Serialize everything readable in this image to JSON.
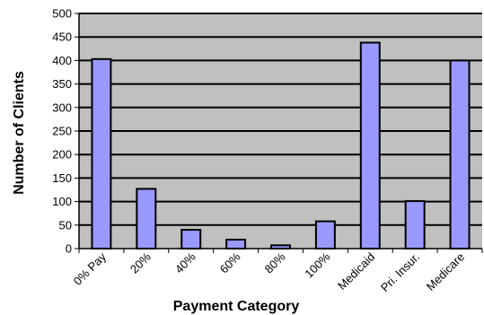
{
  "chart_data": {
    "type": "bar",
    "categories": [
      "0% Pay",
      "20%",
      "40%",
      "60%",
      "80%",
      "100%",
      "Medicaid",
      "Pri. Insur.",
      "Medicare"
    ],
    "values": [
      403,
      127,
      40,
      19,
      7,
      58,
      438,
      101,
      400
    ],
    "xlabel": "Payment Category",
    "ylabel": "Number of Clients",
    "ylim": [
      0,
      500
    ],
    "yticks": [
      0,
      50,
      100,
      150,
      200,
      250,
      300,
      350,
      400,
      450,
      500
    ],
    "grid": true,
    "colors": {
      "bar_fill": "#9999ff",
      "bar_stroke": "#000000",
      "plot_background": "#c0c0c0",
      "gridline": "#000000"
    }
  }
}
